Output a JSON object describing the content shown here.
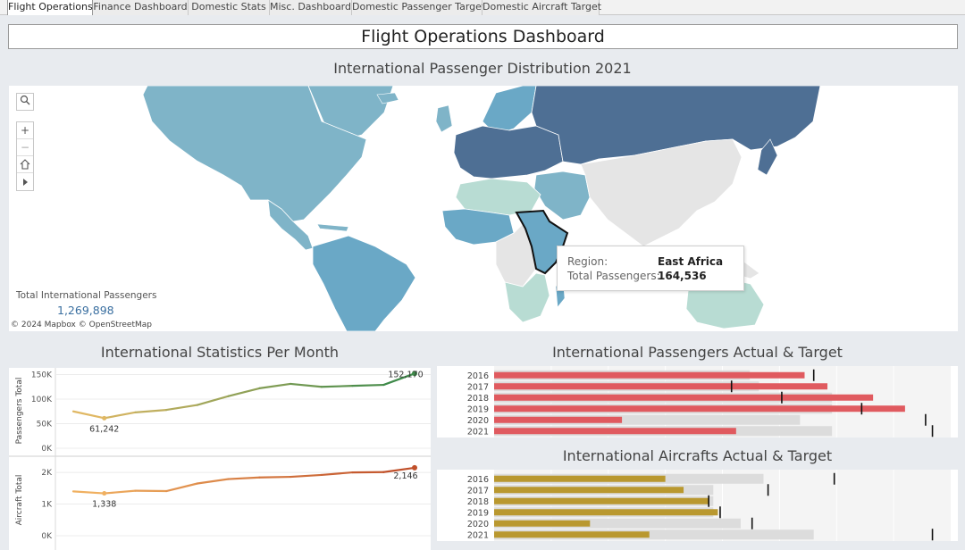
{
  "tabs": [
    {
      "label": "Flight Operations",
      "active": true
    },
    {
      "label": "Finance Dashboard",
      "active": false
    },
    {
      "label": "Domestic Stats",
      "active": false
    },
    {
      "label": "Misc. Dashboard",
      "active": false
    },
    {
      "label": "Domestic Passenger Target",
      "active": false
    },
    {
      "label": "Domestic Aircraft Target",
      "active": false
    }
  ],
  "dashboard_title": "Flight Operations Dashboard",
  "map": {
    "title": "International Passenger Distribution 2021",
    "controls": {
      "search": "search-icon",
      "zoom_in": "+",
      "zoom_out": "−",
      "home": "home-icon",
      "pan": "play-icon"
    },
    "total_label": "Total International Passengers",
    "total_value": "1,269,898",
    "attribution": "© 2024 Mapbox  © OpenStreetMap",
    "tooltip": {
      "region_label": "Region:",
      "region_value": "East Africa",
      "passengers_label": "Total Passengers:",
      "passengers_value": "164,536"
    },
    "colors": {
      "darkest": "#4e6f94",
      "dark": "#7fb4c8",
      "medium": "#6aa8c6",
      "light": "#b8dcd3",
      "none": "#e5e5e5"
    }
  },
  "monthly": {
    "title": "International Statistics Per Month",
    "passengers": {
      "axis_label": "Passengers Total",
      "ticks": [
        {
          "v": 150000,
          "label": "150K"
        },
        {
          "v": 100000,
          "label": "100K"
        },
        {
          "v": 50000,
          "label": "50K"
        },
        {
          "v": 0,
          "label": "0K"
        }
      ],
      "values": [
        75000,
        61242,
        73000,
        78000,
        88000,
        106000,
        122000,
        131000,
        125000,
        127000,
        129000,
        152170
      ],
      "min_label": "61,242",
      "max_label": "152,170"
    },
    "aircraft": {
      "axis_label": "Aircraft Total",
      "ticks": [
        {
          "v": 2000,
          "label": "2K"
        },
        {
          "v": 1000,
          "label": "1K"
        },
        {
          "v": 0,
          "label": "0K"
        }
      ],
      "values": [
        1400,
        1338,
        1420,
        1410,
        1650,
        1790,
        1840,
        1860,
        1920,
        2000,
        2010,
        2146
      ],
      "min_label": "1,338",
      "max_label": "2,146"
    }
  },
  "passengers_target": {
    "title": "International Passengers Actual & Target",
    "color": "#e05a5f",
    "max": 1000,
    "rows": [
      {
        "year": "2016",
        "actual": 680,
        "target": 700,
        "band": 560
      },
      {
        "year": "2017",
        "actual": 730,
        "target": 520,
        "band": 580
      },
      {
        "year": "2018",
        "actual": 830,
        "target": 630,
        "band": 740
      },
      {
        "year": "2019",
        "actual": 900,
        "target": 805,
        "band": 740
      },
      {
        "year": "2020",
        "actual": 280,
        "target": 945,
        "band": 670
      },
      {
        "year": "2021",
        "actual": 530,
        "target": 960,
        "band": 740
      }
    ]
  },
  "aircraft_target": {
    "title": "International Aircrafts Actual & Target",
    "color": "#b9982f",
    "max": 1000,
    "rows": [
      {
        "year": "2016",
        "actual": 375,
        "target": 745,
        "band": 590
      },
      {
        "year": "2017",
        "actual": 415,
        "target": 600,
        "band": 480
      },
      {
        "year": "2018",
        "actual": 470,
        "target": 470,
        "band": 480
      },
      {
        "year": "2019",
        "actual": 490,
        "target": 495,
        "band": 480
      },
      {
        "year": "2020",
        "actual": 210,
        "target": 565,
        "band": 540
      },
      {
        "year": "2021",
        "actual": 340,
        "target": 960,
        "band": 700
      }
    ]
  }
}
